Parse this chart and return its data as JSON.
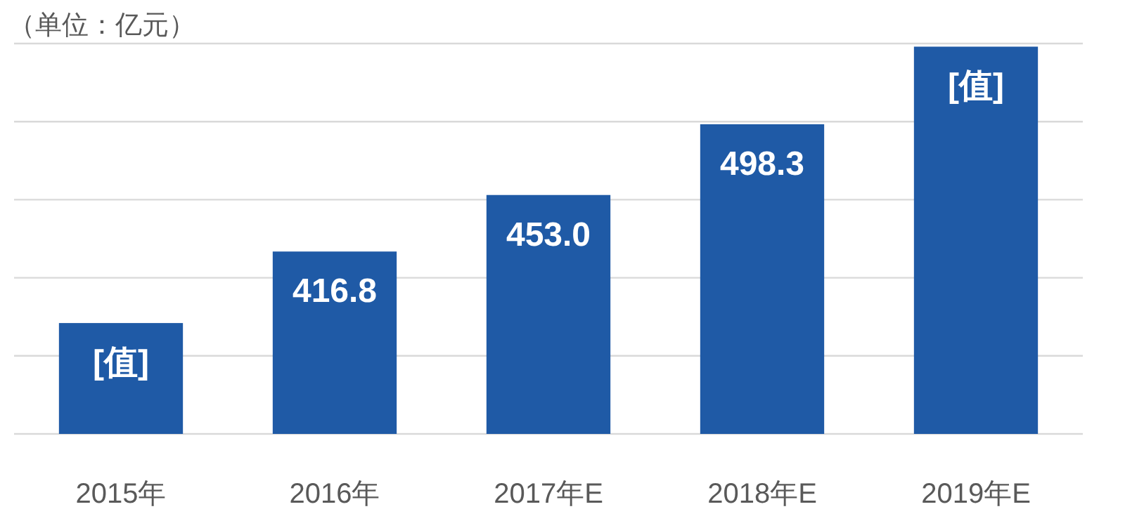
{
  "chart_data": {
    "type": "bar",
    "title": "（单位：亿元）",
    "categories": [
      "2015年",
      "2016年",
      "2017年E",
      "2018年E",
      "2019年E"
    ],
    "values": [
      371,
      416.8,
      453.0,
      498.3,
      548
    ],
    "value_labels": [
      "[值]",
      "416.8",
      "453.0",
      "498.3",
      "[值]"
    ],
    "color": "#1f5aa6",
    "ylim": [
      300,
      550
    ],
    "yticks": [
      {
        "value": 300,
        "label": null
      },
      {
        "value": 350,
        "label": null
      },
      {
        "value": 400,
        "label": null
      },
      {
        "value": 450,
        "label": null
      },
      {
        "value": 500,
        "label": null
      },
      {
        "value": 550,
        "label": null
      }
    ],
    "grid": "y"
  }
}
